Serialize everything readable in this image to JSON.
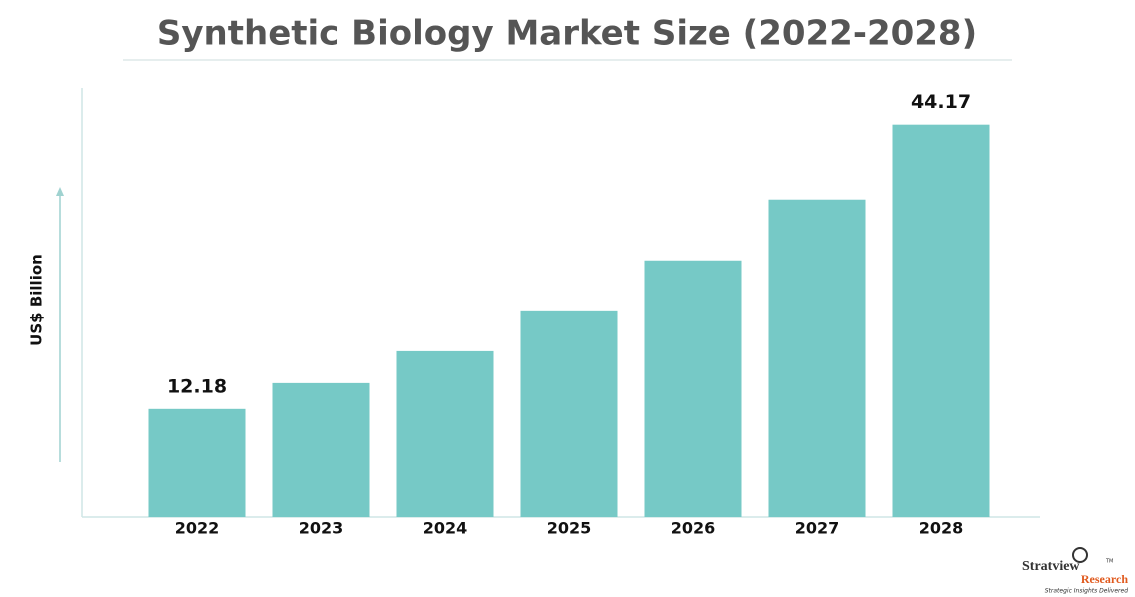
{
  "chart_data": {
    "type": "bar",
    "title": "Synthetic Biology Market Size (2022-2028)",
    "y_label": "US$ Billion",
    "categories": [
      "2022",
      "2023",
      "2024",
      "2025",
      "2026",
      "2027",
      "2028"
    ],
    "values": [
      12.18,
      15.1,
      18.7,
      23.21,
      28.85,
      35.72,
      44.17
    ],
    "color": "#76c9c6",
    "ylim": [
      0,
      48.3
    ]
  },
  "logo": {
    "name": "Stratview",
    "tm": "TM",
    "sub": "Research",
    "tagline": "Strategic Insights Delivered"
  }
}
